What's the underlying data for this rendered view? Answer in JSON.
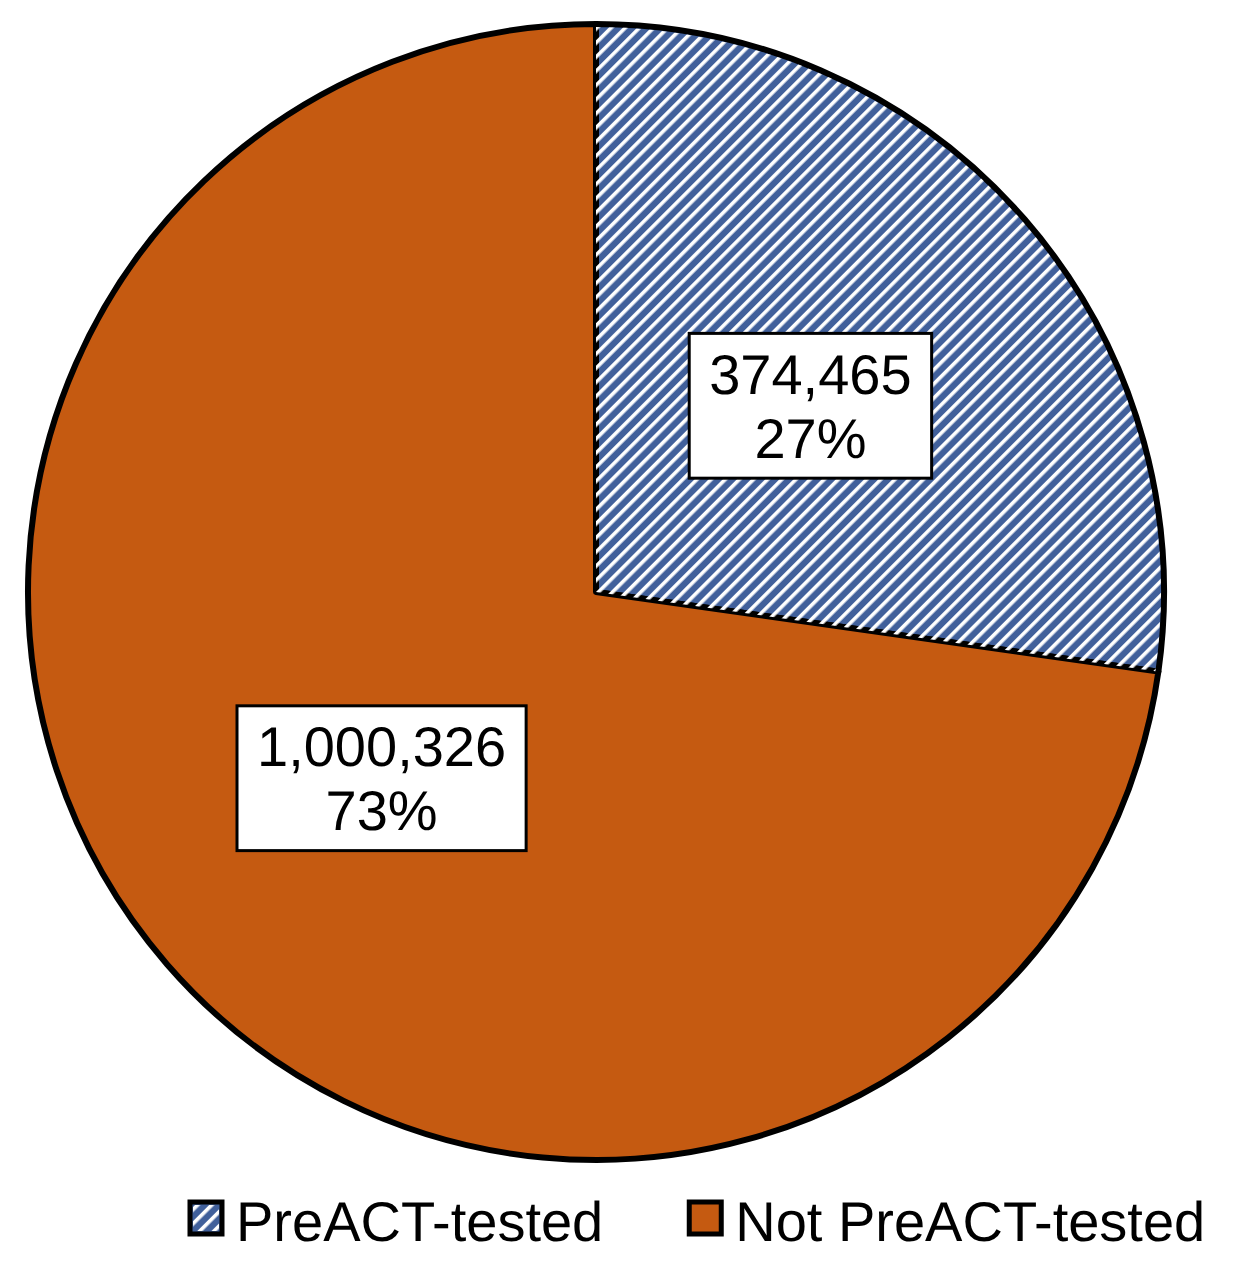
{
  "chart_data": {
    "type": "pie",
    "categories": [
      "PreACT-tested",
      "Not PreACT-tested"
    ],
    "values": [
      374465,
      1000326
    ],
    "colors": [
      "#41609b",
      "#c55a11"
    ],
    "value_labels": [
      "374,465\n27%",
      "1,000,326\n73%"
    ],
    "legend": "bottom"
  }
}
